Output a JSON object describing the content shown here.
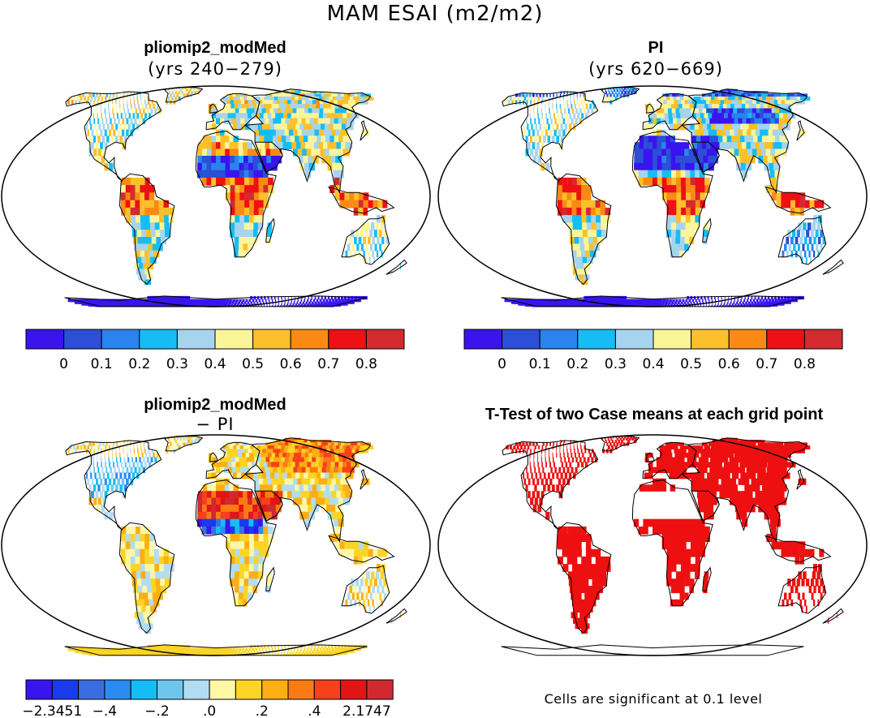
{
  "figure": {
    "title": "MAM ESAI (m2/m2)",
    "footer_note": "Cells are significant at 0.1 level"
  },
  "panels": [
    {
      "title": "pliomip2_modMed",
      "subtitle": "(yrs 240−279)"
    },
    {
      "title": "PI",
      "subtitle": "(yrs 620−669)"
    },
    {
      "title": "pliomip2_modMed",
      "subtitle": "− PI"
    },
    {
      "title": "T-Test of two Case means at each grid point",
      "subtitle": ""
    }
  ],
  "chart_data": [
    {
      "type": "heatmap",
      "projection": "robinson",
      "title": "pliomip2_modMed",
      "subtitle": "(yrs 240−279)",
      "colorbar": {
        "colors": [
          "#3a14ee",
          "#2b4fd6",
          "#2a83ee",
          "#16bdf5",
          "#a6d4ee",
          "#fbf59a",
          "#fcc02a",
          "#fa8a14",
          "#ee1014",
          "#d42a2f"
        ],
        "tick_labels": [
          "0",
          "0.1",
          "0.2",
          "0.3",
          "0.4",
          "0.5",
          "0.6",
          "0.7",
          "0.8"
        ]
      }
    },
    {
      "type": "heatmap",
      "projection": "robinson",
      "title": "PI",
      "subtitle": "(yrs 620−669)",
      "colorbar": {
        "colors": [
          "#3a14ee",
          "#2b4fd6",
          "#2a83ee",
          "#16bdf5",
          "#a6d4ee",
          "#fbf59a",
          "#fcc02a",
          "#fa8a14",
          "#ee1014",
          "#d42a2f"
        ],
        "tick_labels": [
          "0",
          "0.1",
          "0.2",
          "0.3",
          "0.4",
          "0.5",
          "0.6",
          "0.7",
          "0.8"
        ]
      }
    },
    {
      "type": "heatmap",
      "projection": "robinson",
      "title": "pliomip2_modMed",
      "subtitle": "− PI",
      "colorbar": {
        "colors": [
          "#3a14ee",
          "#1a3aee",
          "#3a6ee0",
          "#2a8cf0",
          "#16bdf5",
          "#6ec6ee",
          "#b2dcf2",
          "#fdf7a6",
          "#fcd426",
          "#fcae14",
          "#fa7a14",
          "#f8401a",
          "#e21414",
          "#d02a30"
        ],
        "tick_labels": [
          "−2.3451",
          "−.4",
          "−.2",
          ".0",
          ".2",
          ".4",
          "2.1747"
        ]
      }
    },
    {
      "type": "heatmap",
      "projection": "robinson",
      "title": "T-Test of two Case means at each grid point",
      "significance_color": "#ee1010",
      "note": "Cells are significant at 0.1 level"
    }
  ]
}
